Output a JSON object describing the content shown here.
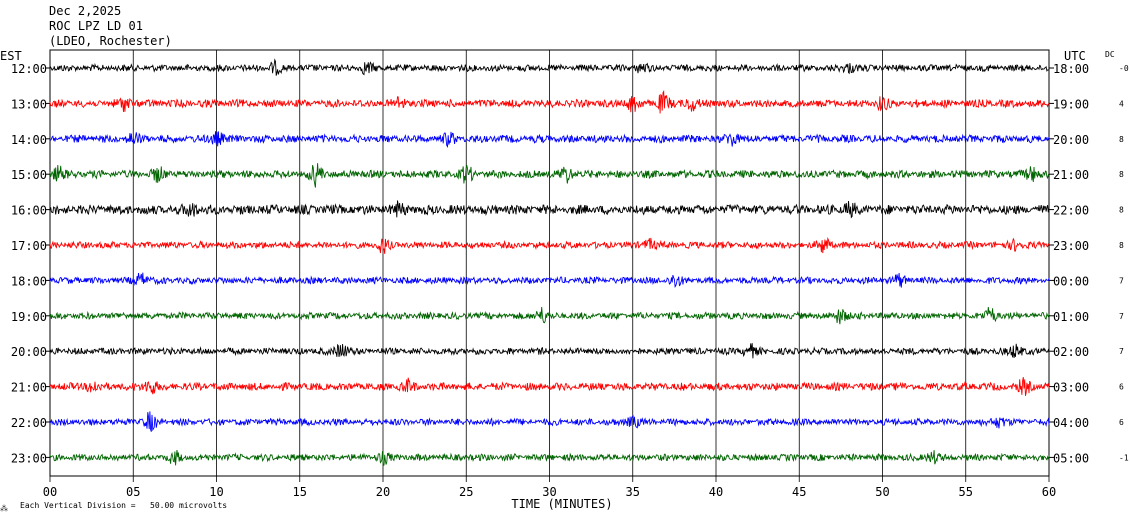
{
  "header": {
    "date": "Dec 2,2025",
    "station": "ROC LPZ LD 01",
    "network": "(LDEO, Rochester)"
  },
  "left_zone": "EST",
  "right_zone": "UTC",
  "dc_label": "DC",
  "footer": {
    "mark": "⁂",
    "scale_text": "Each Vertical Division =   50.00 microvolts"
  },
  "colors": {
    "black": "#000000",
    "red": "#ff0000",
    "blue": "#0000ff",
    "green": "#006400",
    "grid": "#000000"
  },
  "chart_data": {
    "type": "line",
    "title": "ROC LPZ LD 01",
    "xlabel": "TIME (MINUTES)",
    "ylabel": "",
    "xlim": [
      0,
      60
    ],
    "x_ticks": [
      "00",
      "05",
      "10",
      "15",
      "20",
      "25",
      "30",
      "35",
      "40",
      "45",
      "50",
      "55",
      "60"
    ],
    "grid": true,
    "rows": [
      {
        "est": "12:00",
        "utc": "18:00",
        "dc": "-0",
        "color": "#000000",
        "amp": 3.5,
        "events": [
          {
            "t": 13.5,
            "a": 5
          },
          {
            "t": 19,
            "a": 5
          },
          {
            "t": 35.5,
            "a": 4
          },
          {
            "t": 48,
            "a": 4
          }
        ]
      },
      {
        "est": "13:00",
        "utc": "19:00",
        "dc": "4",
        "color": "#ff0000",
        "amp": 4,
        "events": [
          {
            "t": 4.5,
            "a": 6
          },
          {
            "t": 21,
            "a": 5
          },
          {
            "t": 35,
            "a": 7
          },
          {
            "t": 36.8,
            "a": 9
          },
          {
            "t": 38.5,
            "a": 6
          },
          {
            "t": 50,
            "a": 5
          }
        ]
      },
      {
        "est": "14:00",
        "utc": "20:00",
        "dc": "8",
        "color": "#0000ff",
        "amp": 4,
        "events": [
          {
            "t": 5,
            "a": 5
          },
          {
            "t": 10,
            "a": 6
          },
          {
            "t": 24,
            "a": 5
          },
          {
            "t": 41,
            "a": 6
          }
        ]
      },
      {
        "est": "15:00",
        "utc": "21:00",
        "dc": "8",
        "color": "#006400",
        "amp": 4,
        "events": [
          {
            "t": 0.5,
            "a": 6
          },
          {
            "t": 6.5,
            "a": 6
          },
          {
            "t": 16,
            "a": 10
          },
          {
            "t": 25,
            "a": 7
          },
          {
            "t": 31,
            "a": 7
          },
          {
            "t": 59,
            "a": 6
          }
        ]
      },
      {
        "est": "16:00",
        "utc": "22:00",
        "dc": "8",
        "color": "#000000",
        "amp": 5,
        "events": [
          {
            "t": 8.5,
            "a": 6
          },
          {
            "t": 21,
            "a": 5
          },
          {
            "t": 48,
            "a": 5
          }
        ]
      },
      {
        "est": "17:00",
        "utc": "23:00",
        "dc": "8",
        "color": "#ff0000",
        "amp": 3.5,
        "events": [
          {
            "t": 20,
            "a": 6
          },
          {
            "t": 36,
            "a": 5
          },
          {
            "t": 46.5,
            "a": 7
          },
          {
            "t": 58,
            "a": 5
          }
        ]
      },
      {
        "est": "18:00",
        "utc": "00:00",
        "dc": "7",
        "color": "#0000ff",
        "amp": 3.5,
        "events": [
          {
            "t": 5.5,
            "a": 6
          },
          {
            "t": 37.5,
            "a": 6
          },
          {
            "t": 51,
            "a": 5
          }
        ]
      },
      {
        "est": "19:00",
        "utc": "01:00",
        "dc": "7",
        "color": "#006400",
        "amp": 3.5,
        "events": [
          {
            "t": 29.5,
            "a": 7
          },
          {
            "t": 47.5,
            "a": 7
          },
          {
            "t": 56.5,
            "a": 7
          }
        ]
      },
      {
        "est": "20:00",
        "utc": "02:00",
        "dc": "7",
        "color": "#000000",
        "amp": 3.5,
        "events": [
          {
            "t": 17.5,
            "a": 7
          },
          {
            "t": 42,
            "a": 6
          },
          {
            "t": 58,
            "a": 6
          }
        ]
      },
      {
        "est": "21:00",
        "utc": "03:00",
        "dc": "6",
        "color": "#ff0000",
        "amp": 4,
        "events": [
          {
            "t": 2.5,
            "a": 5
          },
          {
            "t": 6,
            "a": 7
          },
          {
            "t": 21.5,
            "a": 5
          },
          {
            "t": 58.5,
            "a": 6
          }
        ]
      },
      {
        "est": "22:00",
        "utc": "04:00",
        "dc": "6",
        "color": "#0000ff",
        "amp": 3.5,
        "events": [
          {
            "t": 6,
            "a": 8
          },
          {
            "t": 35,
            "a": 5
          },
          {
            "t": 57,
            "a": 5
          }
        ]
      },
      {
        "est": "23:00",
        "utc": "05:00",
        "dc": "-1",
        "color": "#006400",
        "amp": 3.5,
        "events": [
          {
            "t": 7.5,
            "a": 5
          },
          {
            "t": 20,
            "a": 5
          },
          {
            "t": 53,
            "a": 5
          }
        ]
      }
    ]
  }
}
